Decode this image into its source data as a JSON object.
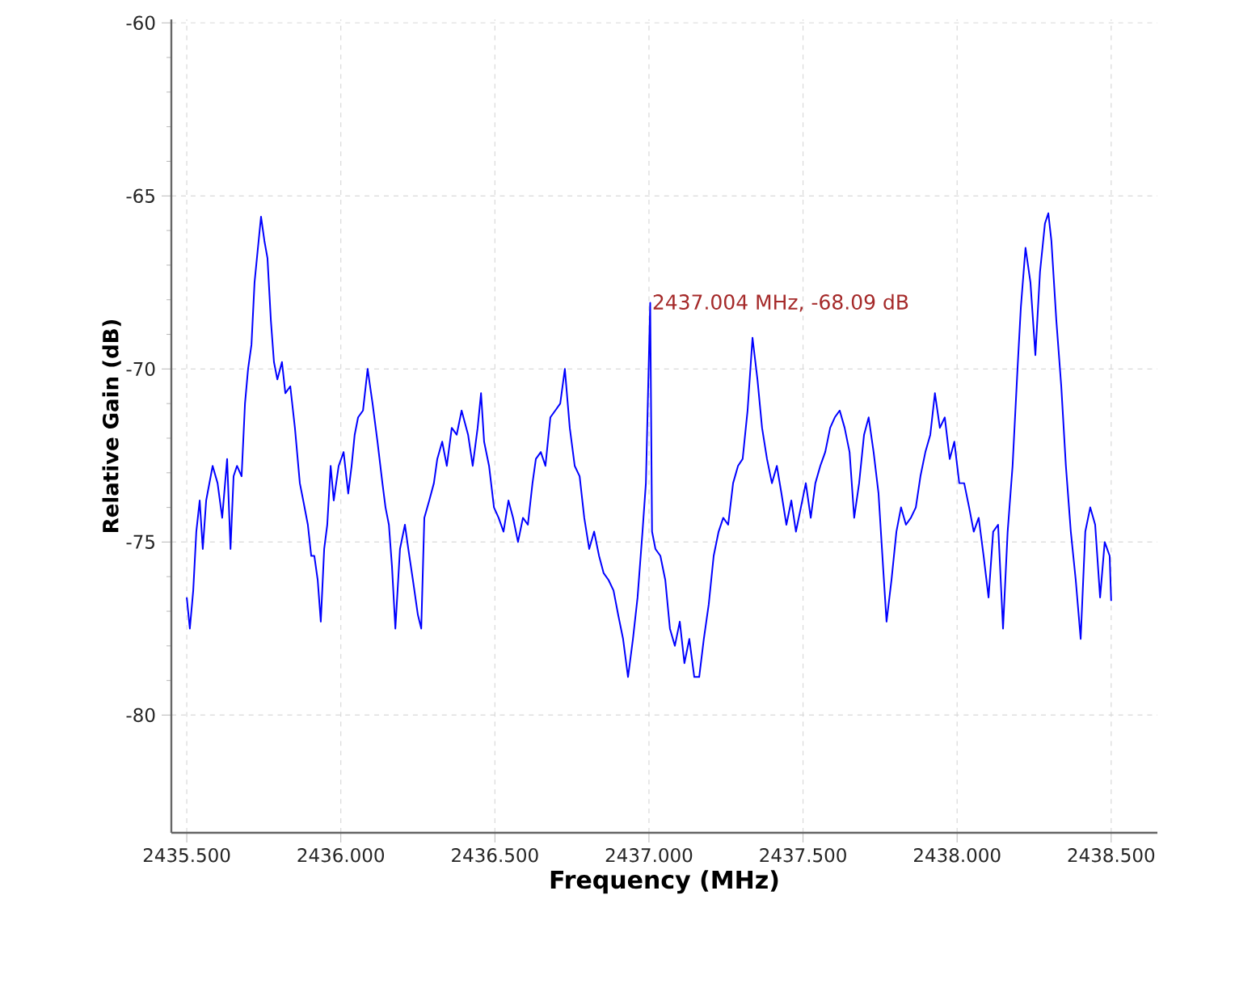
{
  "chart_data": {
    "type": "line",
    "xlabel": "Frequency (MHz)",
    "ylabel": "Relative Gain (dB)",
    "xlim": [
      2435.45,
      2438.65
    ],
    "ylim": [
      -83.4,
      -59.9
    ],
    "xticks": [
      {
        "value": 2435.5,
        "label": "2435.500"
      },
      {
        "value": 2436,
        "label": "2436.000"
      },
      {
        "value": 2436.5,
        "label": "2436.500"
      },
      {
        "value": 2437,
        "label": "2437.000"
      },
      {
        "value": 2437.5,
        "label": "2437.500"
      },
      {
        "value": 2438,
        "label": "2438.000"
      },
      {
        "value": 2438.5,
        "label": "2438.500"
      }
    ],
    "yticks": [
      -80,
      -75,
      -70,
      -65,
      -60
    ],
    "grid": true,
    "annotations": [
      {
        "text": "2437.004 MHz, -68.09 dB",
        "x": 2437.004,
        "y": -68.09
      }
    ],
    "series": [
      {
        "color": "#0000ff",
        "x": [
          2435.5,
          2435.51,
          2435.521,
          2435.531,
          2435.542,
          2435.552,
          2435.563,
          2435.584,
          2435.6,
          2435.615,
          2435.631,
          2435.642,
          2435.652,
          2435.663,
          2435.678,
          2435.689,
          2435.699,
          2435.71,
          2435.72,
          2435.731,
          2435.741,
          2435.752,
          2435.762,
          2435.773,
          2435.783,
          2435.794,
          2435.809,
          2435.82,
          2435.836,
          2435.851,
          2435.867,
          2435.878,
          2435.893,
          2435.904,
          2435.914,
          2435.925,
          2435.935,
          2435.946,
          2435.956,
          2435.967,
          2435.977,
          2435.993,
          2436.009,
          2436.024,
          2436.035,
          2436.045,
          2436.056,
          2436.072,
          2436.087,
          2436.103,
          2436.119,
          2436.135,
          2436.145,
          2436.156,
          2436.166,
          2436.177,
          2436.192,
          2436.208,
          2436.219,
          2436.234,
          2436.25,
          2436.261,
          2436.271,
          2436.287,
          2436.302,
          2436.313,
          2436.329,
          2436.344,
          2436.36,
          2436.376,
          2436.392,
          2436.413,
          2436.428,
          2436.444,
          2436.455,
          2436.465,
          2436.481,
          2436.497,
          2436.512,
          2436.528,
          2436.544,
          2436.559,
          2436.575,
          2436.591,
          2436.607,
          2436.622,
          2436.633,
          2436.649,
          2436.664,
          2436.68,
          2436.696,
          2436.712,
          2436.727,
          2436.743,
          2436.759,
          2436.775,
          2436.79,
          2436.806,
          2436.822,
          2436.838,
          2436.853,
          2436.869,
          2436.885,
          2436.9,
          2436.916,
          2436.932,
          2436.948,
          2436.963,
          2436.979,
          2436.99,
          2437.004,
          2437.01,
          2437.021,
          2437.037,
          2437.053,
          2437.068,
          2437.084,
          2437.1,
          2437.115,
          2437.131,
          2437.147,
          2437.163,
          2437.178,
          2437.194,
          2437.21,
          2437.226,
          2437.241,
          2437.257,
          2437.273,
          2437.289,
          2437.304,
          2437.32,
          2437.336,
          2437.352,
          2437.367,
          2437.383,
          2437.399,
          2437.415,
          2437.43,
          2437.446,
          2437.462,
          2437.477,
          2437.493,
          2437.509,
          2437.525,
          2437.54,
          2437.556,
          2437.572,
          2437.588,
          2437.603,
          2437.619,
          2437.635,
          2437.651,
          2437.666,
          2437.682,
          2437.698,
          2437.713,
          2437.729,
          2437.745,
          2437.761,
          2437.771,
          2437.787,
          2437.803,
          2437.818,
          2437.834,
          2437.85,
          2437.866,
          2437.881,
          2437.897,
          2437.913,
          2437.928,
          2437.944,
          2437.96,
          2437.976,
          2437.991,
          2438.007,
          2438.023,
          2438.039,
          2438.054,
          2438.07,
          2438.086,
          2438.102,
          2438.117,
          2438.133,
          2438.149,
          2438.164,
          2438.18,
          2438.196,
          2438.207,
          2438.222,
          2438.238,
          2438.254,
          2438.269,
          2438.285,
          2438.296,
          2438.306,
          2438.322,
          2438.338,
          2438.353,
          2438.369,
          2438.385,
          2438.401,
          2438.416,
          2438.432,
          2438.448,
          2438.464,
          2438.479,
          2438.495,
          2438.5
        ],
        "values": [
          -76.6,
          -77.5,
          -76.4,
          -74.7,
          -73.8,
          -75.2,
          -73.8,
          -72.8,
          -73.3,
          -74.3,
          -72.6,
          -75.2,
          -73.1,
          -72.8,
          -73.1,
          -71.0,
          -70.0,
          -69.3,
          -67.5,
          -66.5,
          -65.6,
          -66.3,
          -66.8,
          -68.6,
          -69.8,
          -70.3,
          -69.8,
          -70.7,
          -70.5,
          -71.7,
          -73.3,
          -73.8,
          -74.5,
          -75.4,
          -75.4,
          -76.1,
          -77.3,
          -75.2,
          -74.5,
          -72.8,
          -73.8,
          -72.8,
          -72.4,
          -73.6,
          -72.8,
          -71.9,
          -71.4,
          -71.2,
          -70.0,
          -71.0,
          -72.1,
          -73.3,
          -74.0,
          -74.5,
          -75.7,
          -77.5,
          -75.2,
          -74.5,
          -75.2,
          -76.1,
          -77.1,
          -77.5,
          -74.3,
          -73.8,
          -73.3,
          -72.6,
          -72.1,
          -72.8,
          -71.7,
          -71.9,
          -71.2,
          -71.9,
          -72.8,
          -71.7,
          -70.7,
          -72.1,
          -72.8,
          -74.0,
          -74.3,
          -74.7,
          -73.8,
          -74.3,
          -75.0,
          -74.3,
          -74.5,
          -73.3,
          -72.6,
          -72.4,
          -72.8,
          -71.4,
          -71.2,
          -71.0,
          -70.0,
          -71.7,
          -72.8,
          -73.1,
          -74.3,
          -75.2,
          -74.7,
          -75.4,
          -75.9,
          -76.1,
          -76.4,
          -77.1,
          -77.8,
          -78.9,
          -77.8,
          -76.6,
          -74.7,
          -73.3,
          -68.09,
          -74.7,
          -75.2,
          -75.4,
          -76.1,
          -77.5,
          -78.0,
          -77.3,
          -78.5,
          -77.8,
          -78.9,
          -78.9,
          -77.8,
          -76.8,
          -75.4,
          -74.7,
          -74.3,
          -74.5,
          -73.3,
          -72.8,
          -72.6,
          -71.2,
          -69.1,
          -70.3,
          -71.7,
          -72.6,
          -73.3,
          -72.8,
          -73.6,
          -74.5,
          -73.8,
          -74.7,
          -74.0,
          -73.3,
          -74.3,
          -73.3,
          -72.8,
          -72.4,
          -71.7,
          -71.4,
          -71.2,
          -71.7,
          -72.4,
          -74.3,
          -73.3,
          -71.9,
          -71.4,
          -72.4,
          -73.6,
          -75.9,
          -77.3,
          -76.1,
          -74.7,
          -74.0,
          -74.5,
          -74.3,
          -74.0,
          -73.1,
          -72.4,
          -71.9,
          -70.7,
          -71.7,
          -71.4,
          -72.6,
          -72.1,
          -73.3,
          -73.3,
          -74.0,
          -74.7,
          -74.3,
          -75.4,
          -76.6,
          -74.7,
          -74.5,
          -77.5,
          -74.7,
          -72.8,
          -70.0,
          -68.2,
          -66.5,
          -67.5,
          -69.6,
          -67.2,
          -65.8,
          -65.5,
          -66.3,
          -68.6,
          -70.5,
          -72.8,
          -74.7,
          -76.1,
          -77.8,
          -74.7,
          -74.0,
          -74.5,
          -76.6,
          -75.0,
          -75.4,
          -76.7
        ]
      }
    ]
  }
}
